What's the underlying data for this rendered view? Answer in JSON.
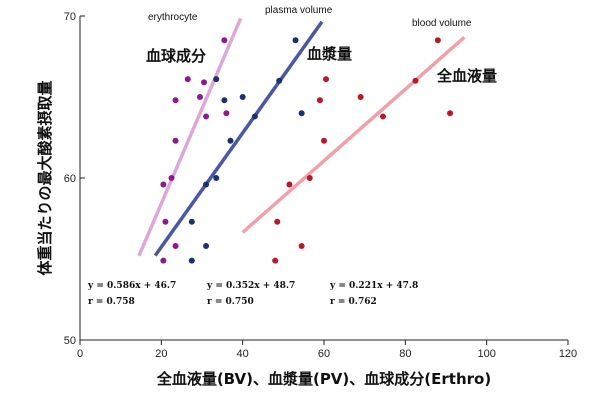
{
  "chart_data": {
    "type": "scatter",
    "title": "",
    "xlabel": "全血液量(BV)、血漿量(PV)、血球成分(Erthro)",
    "ylabel": "体重当たりの最大酸素摂取量",
    "xlim": [
      0,
      120
    ],
    "ylim": [
      50,
      70
    ],
    "x_ticks": [
      0,
      20,
      40,
      60,
      80,
      100,
      120
    ],
    "y_ticks": [
      50,
      60,
      70
    ],
    "x_tick_labels": [
      "0",
      "20",
      "40",
      "60",
      "80",
      "100",
      "120"
    ],
    "y_tick_labels": [
      "50",
      "60",
      "70"
    ],
    "grid": false,
    "series": [
      {
        "name": "erythrocyte",
        "label_jp": "血球成分",
        "color": "#8b1a8b",
        "line_color": "#dba8d8",
        "regression": {
          "slope": 0.586,
          "intercept": 46.7,
          "x_range": [
            14.5,
            39.5
          ]
        },
        "equation": "y = 0.586x + 46.7",
        "r_text": "r = 0.758",
        "points": [
          {
            "x": 35.5,
            "y": 68.5
          },
          {
            "x": 26.5,
            "y": 66.1
          },
          {
            "x": 30.5,
            "y": 65.9
          },
          {
            "x": 23.5,
            "y": 64.8
          },
          {
            "x": 29.5,
            "y": 65.0
          },
          {
            "x": 36.0,
            "y": 64.0
          },
          {
            "x": 31.0,
            "y": 63.8
          },
          {
            "x": 23.5,
            "y": 62.3
          },
          {
            "x": 22.5,
            "y": 60.0
          },
          {
            "x": 20.5,
            "y": 59.6
          },
          {
            "x": 21.0,
            "y": 57.3
          },
          {
            "x": 23.5,
            "y": 55.8
          },
          {
            "x": 20.5,
            "y": 54.9
          }
        ]
      },
      {
        "name": "plasma volume",
        "label_jp": "血漿量",
        "color": "#1e2f6e",
        "line_color": "#4a57a3",
        "regression": {
          "slope": 0.352,
          "intercept": 48.7,
          "x_range": [
            18.5,
            59.5
          ]
        },
        "equation": "y = 0.352x + 48.7",
        "r_text": "r = 0.750",
        "points": [
          {
            "x": 53.0,
            "y": 68.5
          },
          {
            "x": 33.5,
            "y": 66.1
          },
          {
            "x": 49.0,
            "y": 66.0
          },
          {
            "x": 40.0,
            "y": 65.0
          },
          {
            "x": 35.5,
            "y": 64.8
          },
          {
            "x": 54.5,
            "y": 64.0
          },
          {
            "x": 43.0,
            "y": 63.8
          },
          {
            "x": 37.0,
            "y": 62.3
          },
          {
            "x": 33.5,
            "y": 60.0
          },
          {
            "x": 31.0,
            "y": 59.6
          },
          {
            "x": 27.5,
            "y": 57.3
          },
          {
            "x": 31.0,
            "y": 55.8
          },
          {
            "x": 27.5,
            "y": 54.9
          }
        ]
      },
      {
        "name": "blood volume",
        "label_jp": "全血液量",
        "color": "#b8182a",
        "line_color": "#f0a0a8",
        "regression": {
          "slope": 0.221,
          "intercept": 47.8,
          "x_range": [
            40.0,
            94.5
          ]
        },
        "equation": "y = 0.221x + 47.8",
        "r_text": "r = 0.762",
        "points": [
          {
            "x": 88.0,
            "y": 68.5
          },
          {
            "x": 60.5,
            "y": 66.1
          },
          {
            "x": 82.5,
            "y": 66.0
          },
          {
            "x": 69.0,
            "y": 65.0
          },
          {
            "x": 59.0,
            "y": 64.8
          },
          {
            "x": 91.0,
            "y": 64.0
          },
          {
            "x": 74.5,
            "y": 63.8
          },
          {
            "x": 60.0,
            "y": 62.3
          },
          {
            "x": 56.5,
            "y": 60.0
          },
          {
            "x": 51.5,
            "y": 59.6
          },
          {
            "x": 48.5,
            "y": 57.3
          },
          {
            "x": 54.5,
            "y": 55.8
          },
          {
            "x": 48.0,
            "y": 54.9
          }
        ]
      }
    ]
  }
}
